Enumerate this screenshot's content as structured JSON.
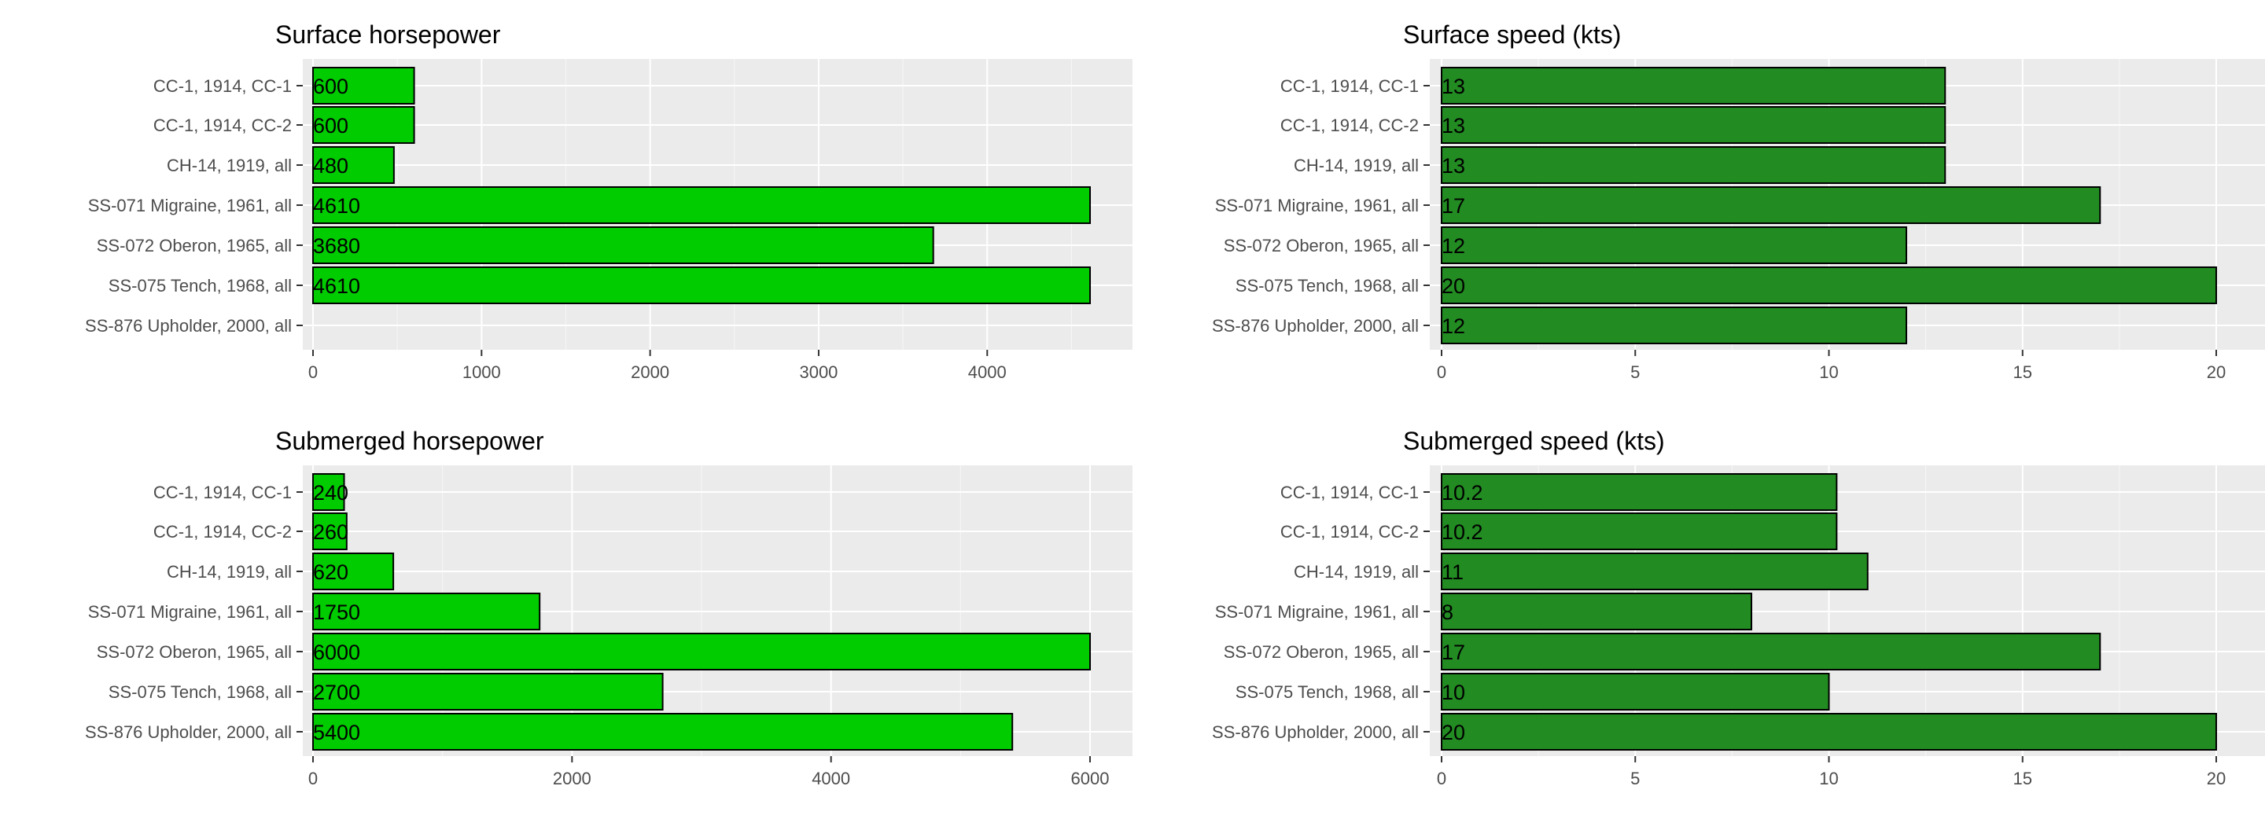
{
  "chart_data": [
    {
      "type": "bar",
      "orientation": "horizontal",
      "title": "Surface horsepower",
      "categories": [
        "CC-1, 1914, CC-1",
        "CC-1, 1914, CC-2",
        "CH-14, 1919, all",
        "SS-071 Migraine, 1961, all",
        "SS-072 Oberon, 1965, all",
        "SS-075 Tench, 1968, all",
        "SS-876 Upholder, 2000, all"
      ],
      "values": [
        600,
        600,
        480,
        4610,
        3680,
        4610,
        null
      ],
      "labels": [
        "600",
        "600",
        "480",
        "4610",
        "3680",
        "4610",
        ""
      ],
      "xlim": [
        0,
        4610
      ],
      "ticks": [
        0,
        1000,
        2000,
        3000,
        4000
      ],
      "tick_labels": [
        "0",
        "1000",
        "2000",
        "3000",
        "4000"
      ],
      "minor_ticks": [
        500,
        1500,
        2500,
        3500,
        4500
      ],
      "color": "#00cc00",
      "grid": true
    },
    {
      "type": "bar",
      "orientation": "horizontal",
      "title": "Surface speed (kts)",
      "categories": [
        "CC-1, 1914, CC-1",
        "CC-1, 1914, CC-2",
        "CH-14, 1919, all",
        "SS-071 Migraine, 1961, all",
        "SS-072 Oberon, 1965, all",
        "SS-075 Tench, 1968, all",
        "SS-876 Upholder, 2000, all"
      ],
      "values": [
        13,
        13,
        13,
        17,
        12,
        20,
        12
      ],
      "labels": [
        "13",
        "13",
        "13",
        "17",
        "12",
        "20",
        "12"
      ],
      "xlim": [
        0,
        20
      ],
      "ticks": [
        0,
        5,
        10,
        15,
        20
      ],
      "tick_labels": [
        "0",
        "5",
        "10",
        "15",
        "20"
      ],
      "minor_ticks": [
        2.5,
        7.5,
        12.5,
        17.5
      ],
      "color": "#228b22",
      "grid": true
    },
    {
      "type": "bar",
      "orientation": "horizontal",
      "title": "Submerged horsepower",
      "categories": [
        "CC-1, 1914, CC-1",
        "CC-1, 1914, CC-2",
        "CH-14, 1919, all",
        "SS-071 Migraine, 1961, all",
        "SS-072 Oberon, 1965, all",
        "SS-075 Tench, 1968, all",
        "SS-876 Upholder, 2000, all"
      ],
      "values": [
        240,
        260,
        620,
        1750,
        6000,
        2700,
        5400
      ],
      "labels": [
        "240",
        "260",
        "620",
        "1750",
        "6000",
        "2700",
        "5400"
      ],
      "xlim": [
        0,
        6000
      ],
      "ticks": [
        0,
        2000,
        4000,
        6000
      ],
      "tick_labels": [
        "0",
        "2000",
        "4000",
        "6000"
      ],
      "minor_ticks": [
        1000,
        3000,
        5000
      ],
      "color": "#00cc00",
      "grid": true
    },
    {
      "type": "bar",
      "orientation": "horizontal",
      "title": "Submerged speed (kts)",
      "categories": [
        "CC-1, 1914, CC-1",
        "CC-1, 1914, CC-2",
        "CH-14, 1919, all",
        "SS-071 Migraine, 1961, all",
        "SS-072 Oberon, 1965, all",
        "SS-075 Tench, 1968, all",
        "SS-876 Upholder, 2000, all"
      ],
      "values": [
        10.2,
        10.2,
        11,
        8,
        17,
        10,
        20
      ],
      "labels": [
        "10.2",
        "10.2",
        "11",
        "8",
        "17",
        "10",
        "20"
      ],
      "xlim": [
        0,
        20
      ],
      "ticks": [
        0,
        5,
        10,
        15,
        20
      ],
      "tick_labels": [
        "0",
        "5",
        "10",
        "15",
        "20"
      ],
      "minor_ticks": [
        2.5,
        7.5,
        12.5,
        17.5
      ],
      "color": "#228b22",
      "grid": true
    }
  ]
}
